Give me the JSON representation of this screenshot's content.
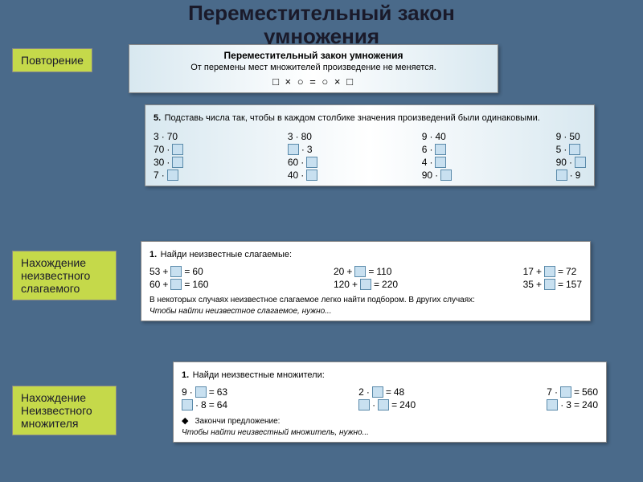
{
  "title_line1": "Переместительный закон",
  "title_line2": "умножения",
  "tags": {
    "repeat": "Повторение",
    "addend": "Нахождение неизвестного слагаемого",
    "factor": "Нахождение Неизвестного множителя"
  },
  "panel1": {
    "title": "Переместительный закон умножения",
    "subtitle": "От перемены мест множителей произведение не меняется.",
    "formula": "□ × ○ = ○ × □"
  },
  "panel2": {
    "num": "5.",
    "text": "Подставь числа так, чтобы в каждом столбике значения произведений были одинаковыми.",
    "cols": [
      [
        [
          "3",
          "·",
          "70"
        ],
        [
          "70",
          "·",
          "□"
        ],
        [
          "30",
          "·",
          "□"
        ],
        [
          "7",
          "·",
          "□"
        ]
      ],
      [
        [
          "3",
          "·",
          "80"
        ],
        [
          "□",
          "·",
          "3"
        ],
        [
          "60",
          "·",
          "□"
        ],
        [
          "40",
          "·",
          "□"
        ]
      ],
      [
        [
          "9",
          "·",
          "40"
        ],
        [
          "6",
          "·",
          "□"
        ],
        [
          "4",
          "·",
          "□"
        ],
        [
          "90",
          "·",
          "□"
        ]
      ],
      [
        [
          "9",
          "·",
          "50"
        ],
        [
          "5",
          "·",
          "□"
        ],
        [
          "90",
          "·",
          "□"
        ],
        [
          "□",
          "·",
          "9"
        ]
      ]
    ]
  },
  "panel3": {
    "num": "1.",
    "text": "Найди неизвестные слагаемые:",
    "eqs": [
      [
        [
          "53",
          "+",
          "□",
          "=",
          "60"
        ],
        [
          "60",
          "+",
          "□",
          "=",
          "160"
        ]
      ],
      [
        [
          "20",
          "+",
          "□",
          "=",
          "110"
        ],
        [
          "120",
          "+",
          "□",
          "=",
          "220"
        ]
      ],
      [
        [
          "17",
          "+",
          "□",
          "=",
          "72"
        ],
        [
          "35",
          "+",
          "□",
          "=",
          "157"
        ]
      ]
    ],
    "note": "В некоторых случаях неизвестное слагаемое легко найти подбором. В других случаях:",
    "noteItal": "Чтобы найти неизвестное слагаемое, нужно..."
  },
  "panel4": {
    "num": "1.",
    "text": "Найди неизвестные множители:",
    "eqs": [
      [
        [
          "9",
          "·",
          "□",
          "=",
          "63"
        ],
        [
          "□",
          "·",
          "8",
          "=",
          "64"
        ]
      ],
      [
        [
          "2",
          "·",
          "□",
          "=",
          "48"
        ],
        [
          "□",
          "·",
          "□",
          "=",
          "240"
        ]
      ],
      [
        [
          "7",
          "·",
          "□",
          "=",
          "560"
        ],
        [
          "□",
          "·",
          "3",
          "=",
          "240"
        ]
      ]
    ],
    "note": "Закончи предложение:",
    "noteItal": "Чтобы найти неизвестный множитель, нужно..."
  }
}
